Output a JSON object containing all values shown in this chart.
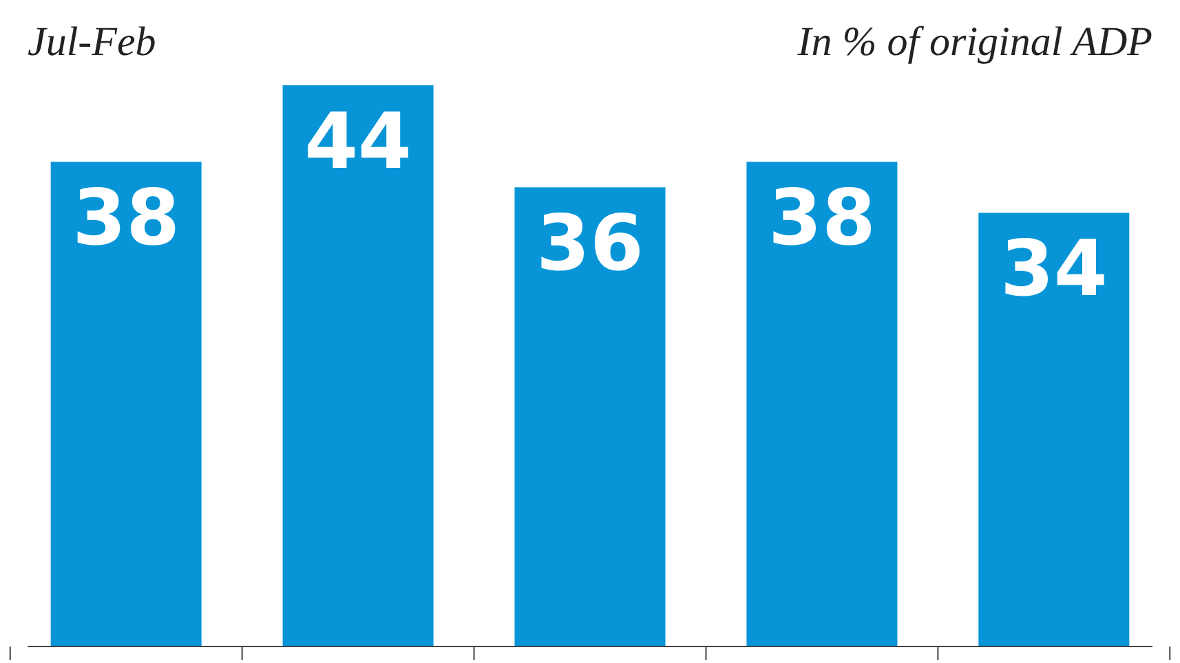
{
  "chart_data": {
    "type": "bar",
    "categories": [
      null,
      null,
      null,
      null,
      null
    ],
    "values": [
      38,
      44,
      36,
      38,
      34
    ],
    "color": "#0795d8",
    "data_labels": true,
    "annotations": [
      "Jul-Feb",
      "In % of original ADP"
    ]
  }
}
